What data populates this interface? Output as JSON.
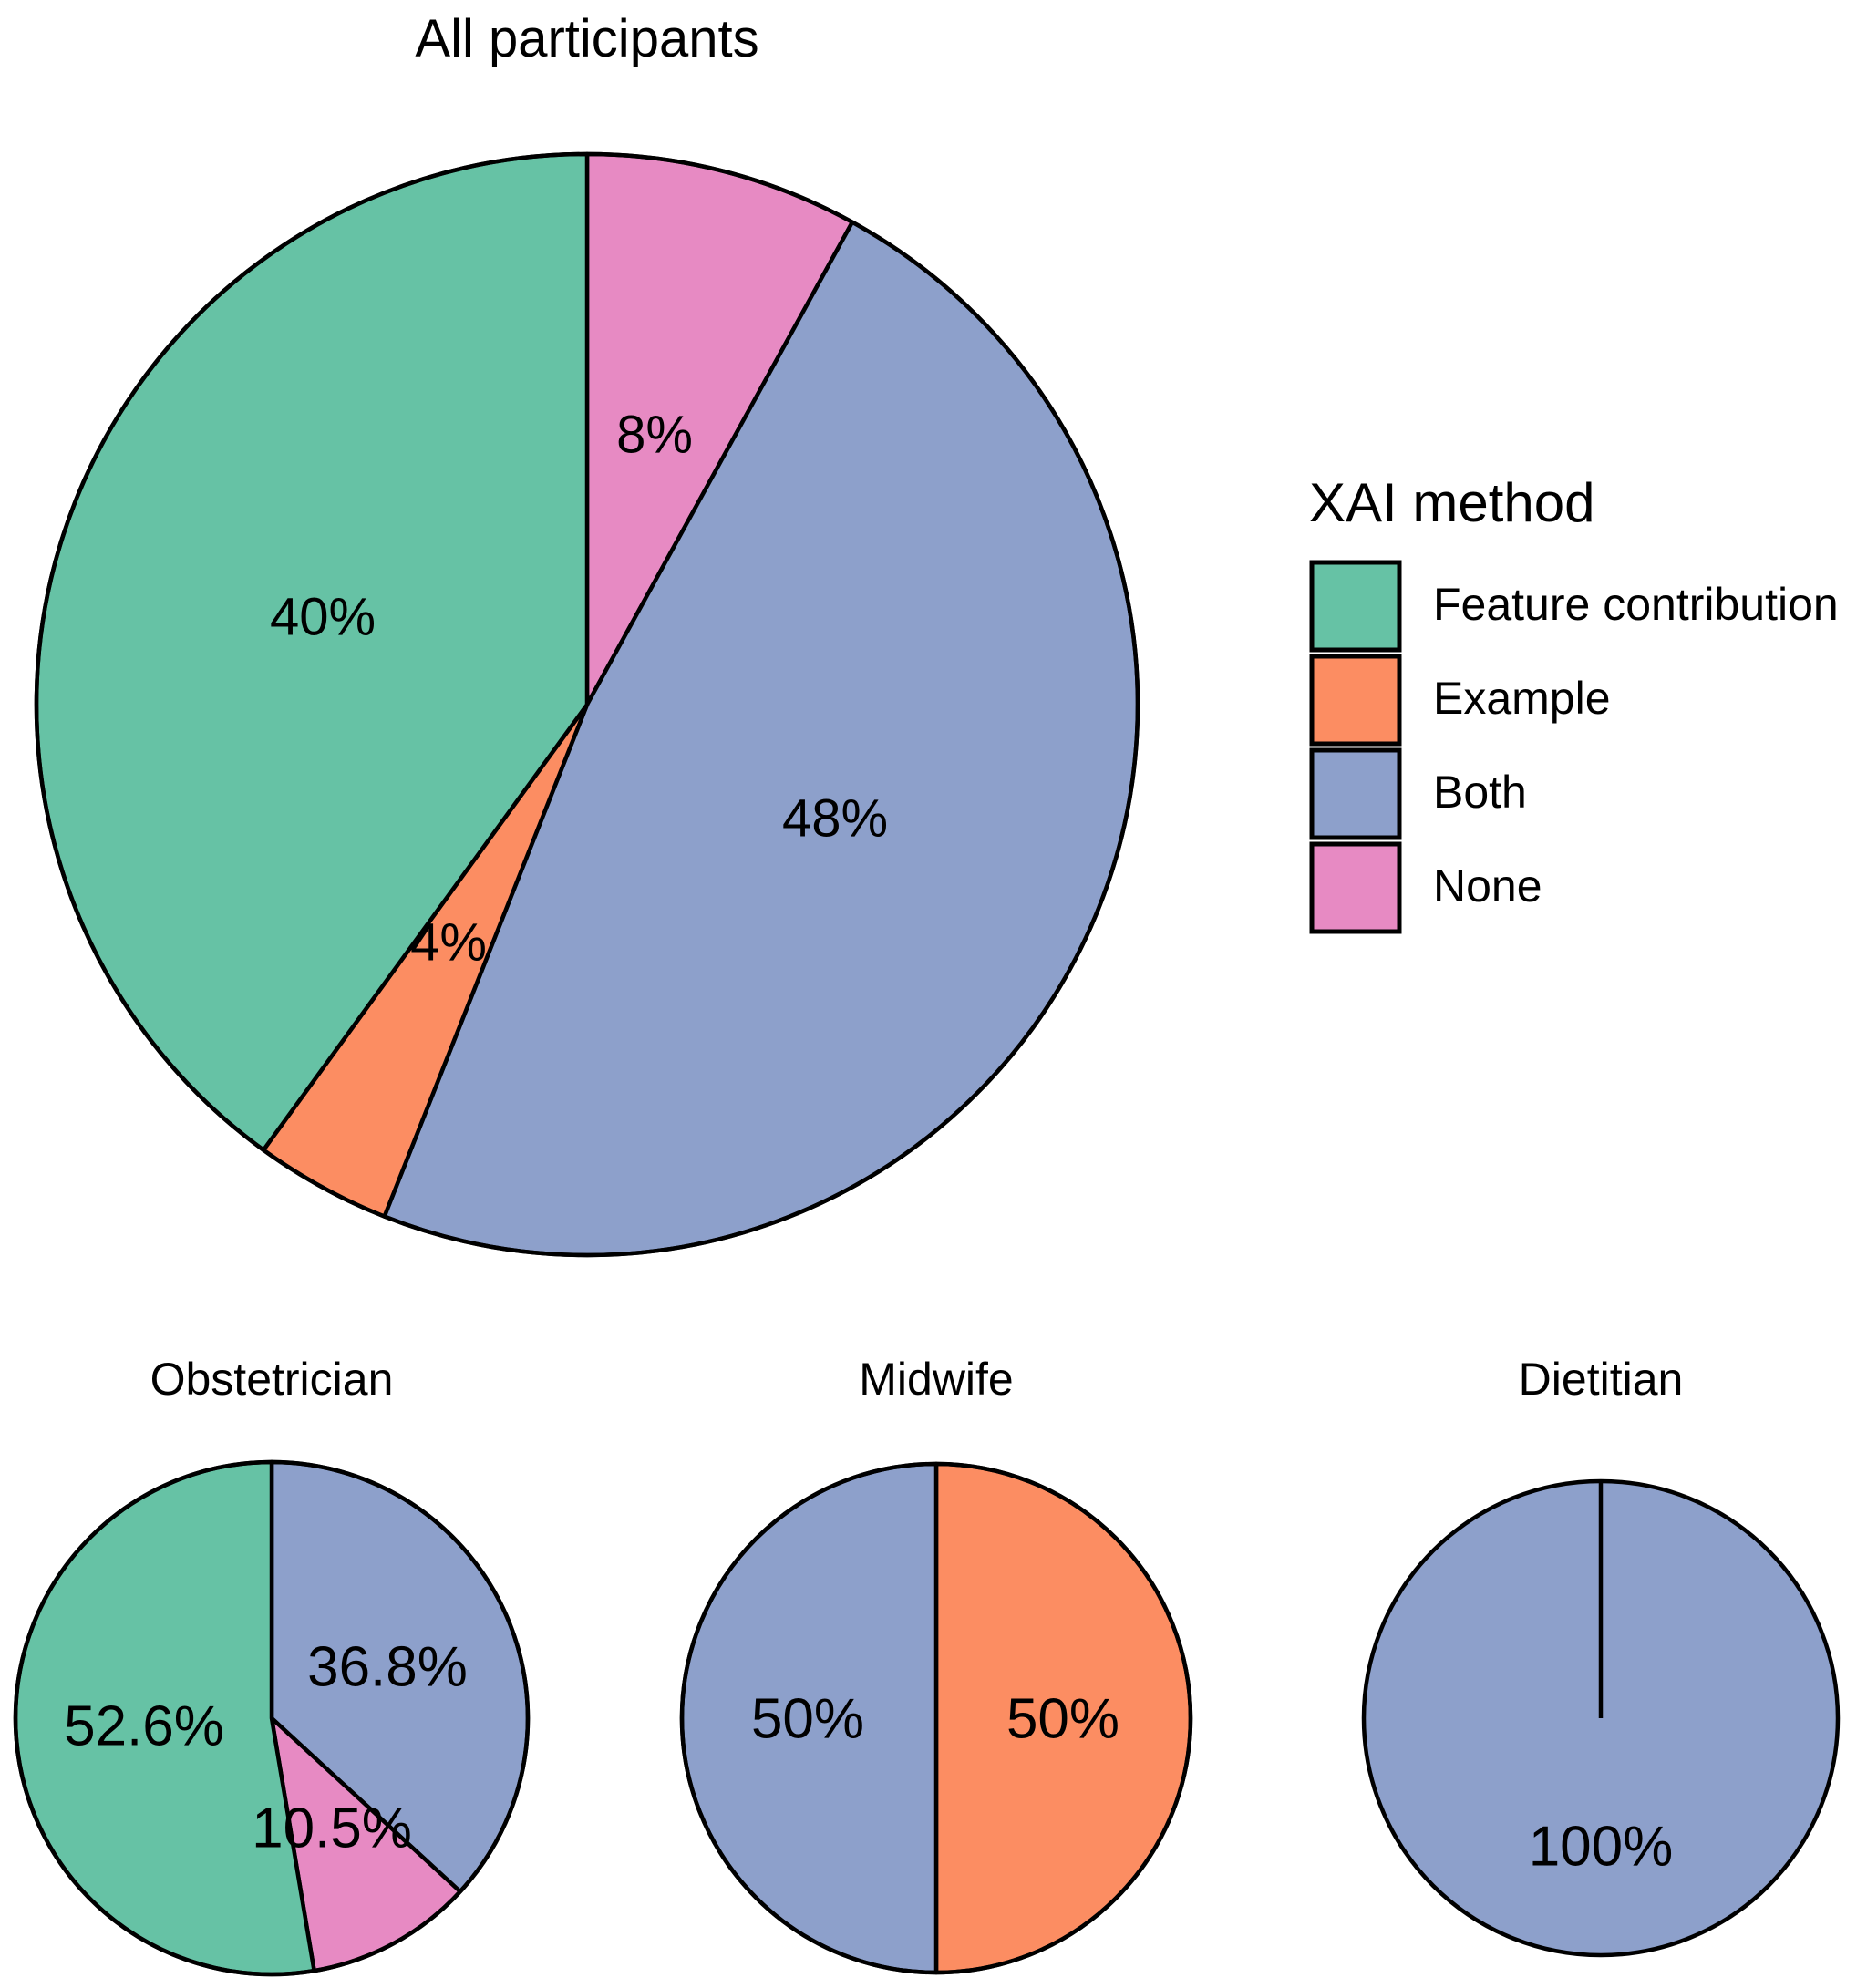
{
  "chart_data": [
    {
      "type": "pie",
      "title": "All participants",
      "slices": [
        {
          "label": "None",
          "value": 8,
          "text": "8%",
          "color": "#E78AC3"
        },
        {
          "label": "Both",
          "value": 48,
          "text": "48%",
          "color": "#8DA0CB"
        },
        {
          "label": "Example",
          "value": 4,
          "text": "4%",
          "color": "#FC8D62"
        },
        {
          "label": "Feature contribution",
          "value": 40,
          "text": "40%",
          "color": "#66C2A5"
        }
      ]
    },
    {
      "type": "pie",
      "title": "Obstetrician",
      "slices": [
        {
          "label": "Both",
          "value": 36.8,
          "text": "36.8%",
          "color": "#8DA0CB"
        },
        {
          "label": "None",
          "value": 10.5,
          "text": "10.5%",
          "color": "#E78AC3"
        },
        {
          "label": "Feature contribution",
          "value": 52.6,
          "text": "52.6%",
          "color": "#66C2A5"
        }
      ]
    },
    {
      "type": "pie",
      "title": "Midwife",
      "slices": [
        {
          "label": "Example",
          "value": 50,
          "text": "50%",
          "color": "#FC8D62"
        },
        {
          "label": "Both",
          "value": 50,
          "text": "50%",
          "color": "#8DA0CB"
        }
      ]
    },
    {
      "type": "pie",
      "title": "Dietitian",
      "slices": [
        {
          "label": "Both",
          "value": 100,
          "text": "100%",
          "color": "#8DA0CB"
        }
      ]
    }
  ],
  "legend": {
    "title": "XAI method",
    "items": [
      {
        "label": "Feature contribution",
        "color": "#66C2A5"
      },
      {
        "label": "Example",
        "color": "#FC8D62"
      },
      {
        "label": "Both",
        "color": "#8DA0CB"
      },
      {
        "label": "None",
        "color": "#E78AC3"
      }
    ]
  }
}
